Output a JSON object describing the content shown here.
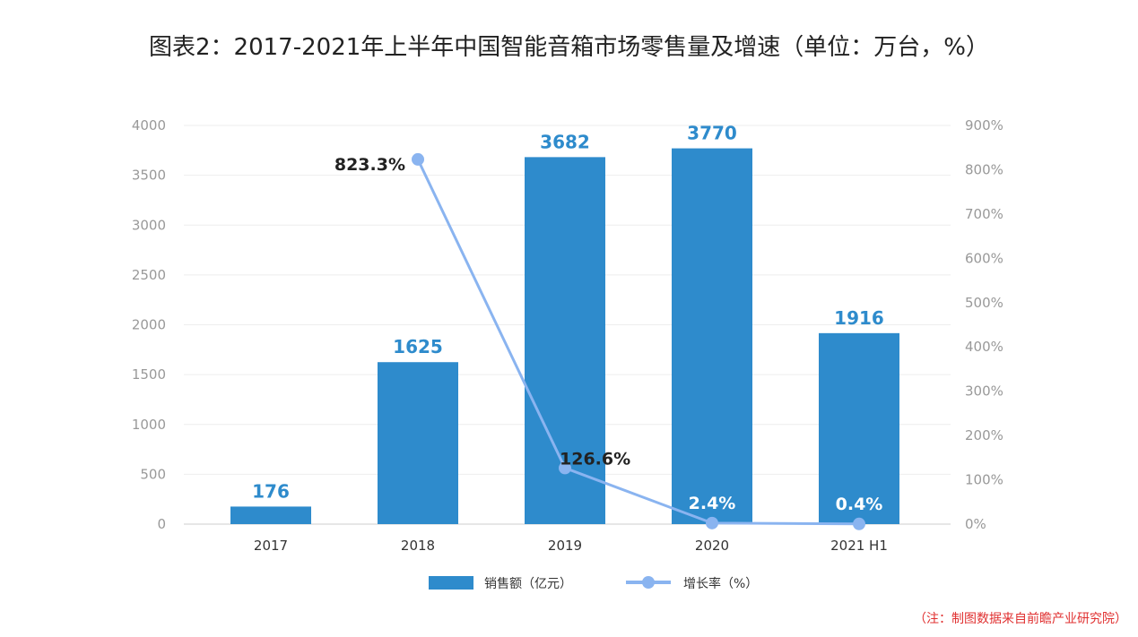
{
  "title": "图表2：2017-2021年上半年中国智能音箱市场零售量及增速（单位：万台，%）",
  "note": "（注：制图数据来自前瞻产业研究院）",
  "colors": {
    "bar": "#2e8bcc",
    "line": "#8ab4f0",
    "bar_label": "#2e8bcc",
    "line_label": "#222222"
  },
  "chart_data": {
    "type": "bar+line",
    "categories": [
      "2017",
      "2018",
      "2019",
      "2020",
      "2021 H1"
    ],
    "series": [
      {
        "name": "销售额（亿元）",
        "type": "bar",
        "axis": "left",
        "values": [
          176,
          1625,
          3682,
          3770,
          1916
        ],
        "labels": [
          "176",
          "1625",
          "3682",
          "3770",
          "1916"
        ]
      },
      {
        "name": "增长率（%）",
        "type": "line",
        "axis": "right",
        "values": [
          null,
          823.3,
          126.6,
          2.4,
          0.4
        ],
        "labels": [
          "",
          "823.3%",
          "126.6%",
          "2.4%",
          "0.4%"
        ]
      }
    ],
    "left_axis": {
      "range": [
        0,
        4000
      ],
      "ticks": [
        "0",
        "500",
        "1000",
        "1500",
        "2000",
        "2500",
        "3000",
        "3500",
        "4000"
      ]
    },
    "right_axis": {
      "range": [
        0,
        900
      ],
      "ticks": [
        "0%",
        "100%",
        "200%",
        "300%",
        "400%",
        "500%",
        "600%",
        "700%",
        "800%",
        "900%"
      ]
    },
    "grid": true,
    "legend_position": "bottom"
  }
}
